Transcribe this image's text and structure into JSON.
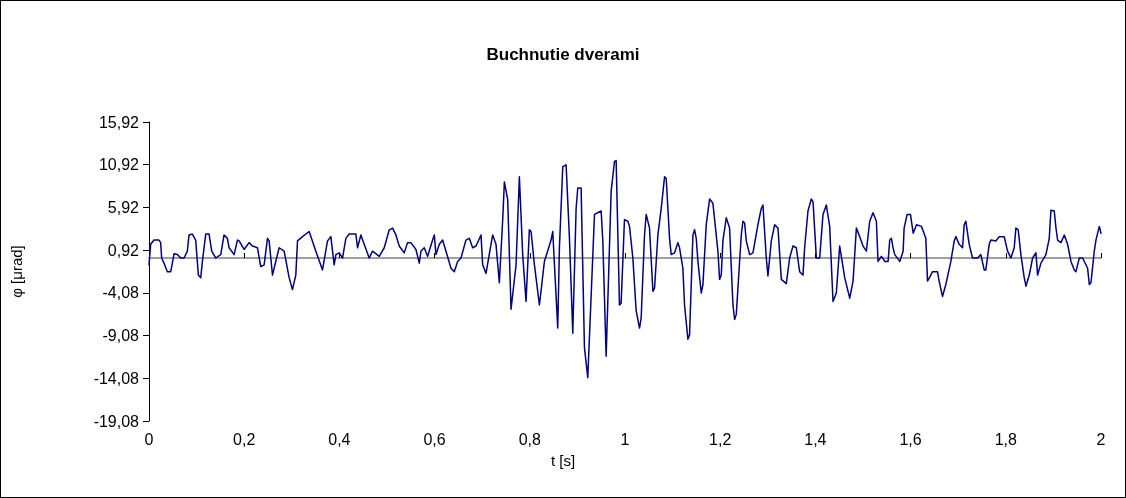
{
  "chart_data": {
    "type": "line",
    "title": "Buchnutie dverami",
    "xlabel": "t [s]",
    "ylabel": "φ [μrad]",
    "x": [
      0,
      0.0035,
      0.0105,
      0.021,
      0.0245,
      0.0266,
      0.0315,
      0.0386,
      0.0456,
      0.0491,
      0.0526,
      0.0596,
      0.0666,
      0.0736,
      0.0806,
      0.0841,
      0.0911,
      0.0981,
      0.1037,
      0.1087,
      0.1122,
      0.1192,
      0.1262,
      0.1318,
      0.1402,
      0.1507,
      0.1577,
      0.1647,
      0.1682,
      0.1788,
      0.1858,
      0.1893,
      0.1998,
      0.2103,
      0.2173,
      0.2278,
      0.2348,
      0.2419,
      0.2489,
      0.2524,
      0.2594,
      0.2629,
      0.2734,
      0.2839,
      0.2944,
      0.3014,
      0.3084,
      0.312,
      0.3225,
      0.3365,
      0.3505,
      0.3645,
      0.375,
      0.382,
      0.389,
      0.3926,
      0.3996,
      0.4066,
      0.4136,
      0.4206,
      0.4346,
      0.4381,
      0.4451,
      0.4521,
      0.4626,
      0.4696,
      0.4837,
      0.4942,
      0.5047,
      0.5117,
      0.5187,
      0.5257,
      0.5362,
      0.5432,
      0.5502,
      0.5608,
      0.5678,
      0.5713,
      0.5783,
      0.5853,
      0.5958,
      0.5994,
      0.6029,
      0.6099,
      0.6169,
      0.6239,
      0.6344,
      0.6414,
      0.6484,
      0.6554,
      0.6659,
      0.6729,
      0.6799,
      0.687,
      0.6975,
      0.701,
      0.708,
      0.7185,
      0.722,
      0.729,
      0.736,
      0.7431,
      0.7466,
      0.7536,
      0.7606,
      0.7711,
      0.7781,
      0.7851,
      0.7921,
      0.7991,
      0.8027,
      0.8097,
      0.8202,
      0.8307,
      0.8447,
      0.8482,
      0.8587,
      0.8622,
      0.8693,
      0.8763,
      0.8833,
      0.8903,
      0.8973,
      0.9008,
      0.9078,
      0.9148,
      0.9218,
      0.9359,
      0.9499,
      0.9534,
      0.9604,
      0.9709,
      0.9779,
      0.9814,
      0.9884,
      0.9919,
      0.9989,
      1.006,
      1.0095,
      1.0165,
      1.0235,
      1.0305,
      1.034,
      1.041,
      1.0445,
      1.0515,
      1.0586,
      1.0621,
      1.0691,
      1.0761,
      1.0831,
      1.0866,
      1.0936,
      1.0971,
      1.1041,
      1.1111,
      1.1146,
      1.1216,
      1.1251,
      1.1321,
      1.1356,
      1.1427,
      1.1462,
      1.1497,
      1.1532,
      1.1602,
      1.1637,
      1.1707,
      1.1777,
      1.1847,
      1.1952,
      1.1987,
      1.2022,
      1.2057,
      1.2127,
      1.2197,
      1.2268,
      1.2303,
      1.2338,
      1.2443,
      1.2478,
      1.2513,
      1.2548,
      1.2618,
      1.2688,
      1.2793,
      1.2863,
      1.2898,
      1.2968,
      1.3003,
      1.3074,
      1.3144,
      1.3214,
      1.3284,
      1.3389,
      1.3459,
      1.3529,
      1.3599,
      1.3669,
      1.3739,
      1.3774,
      1.3844,
      1.3915,
      1.395,
      1.402,
      1.409,
      1.416,
      1.423,
      1.43,
      1.437,
      1.444,
      1.451,
      1.4616,
      1.4721,
      1.4791,
      1.4861,
      1.4931,
      1.5001,
      1.5071,
      1.5141,
      1.5211,
      1.5281,
      1.5316,
      1.5387,
      1.5457,
      1.5527,
      1.5562,
      1.5597,
      1.5632,
      1.5667,
      1.5773,
      1.5843,
      1.5864,
      1.5927,
      1.5997,
      1.6054,
      1.6124,
      1.6229,
      1.632,
      1.6355,
      1.6425,
      1.646,
      1.6565,
      1.66,
      1.667,
      1.674,
      1.6846,
      1.6916,
      1.6951,
      1.7021,
      1.7091,
      1.7126,
      1.7161,
      1.7231,
      1.7301,
      1.7406,
      1.7476,
      1.7546,
      1.7581,
      1.7651,
      1.7686,
      1.7792,
      1.7862,
      1.7967,
      1.8037,
      1.8107,
      1.8177,
      1.8212,
      1.8261,
      1.8317,
      1.8387,
      1.8423,
      1.8493,
      1.8563,
      1.8633,
      1.8668,
      1.8738,
      1.8843,
      1.8913,
      1.8948,
      1.9018,
      1.9054,
      1.9089,
      1.9159,
      1.9229,
      1.9299,
      1.9369,
      1.9439,
      1.9474,
      1.9544,
      1.9614,
      1.9719,
      1.9754,
      1.9789,
      1.9859,
      1.9894,
      1.9964,
      2.0
    ],
    "series": [
      {
        "color": "#000080",
        "values": [
          -0.8,
          1.6,
          2.1,
          2.1,
          1.8,
          0,
          -0.6,
          -1.6,
          -1.6,
          -0.6,
          0.5,
          0.4,
          0,
          0,
          0.8,
          2.7,
          2.8,
          2.1,
          -2,
          -2.3,
          -0.4,
          2.8,
          2.8,
          0.8,
          0,
          0.4,
          2.7,
          2.3,
          1.2,
          0.4,
          2.1,
          2,
          1,
          1.8,
          1.4,
          1.2,
          -1,
          -0.8,
          2.3,
          2,
          -2,
          -1.2,
          1.2,
          0.8,
          -2.3,
          -3.7,
          -2,
          2,
          2.5,
          3.1,
          0.8,
          -1.4,
          2,
          2.5,
          -0.8,
          0.4,
          0.6,
          0,
          2.3,
          2.8,
          2.8,
          1.2,
          2.7,
          1.6,
          0,
          0.8,
          0.2,
          1.2,
          3.3,
          3.5,
          2.7,
          1.4,
          0.6,
          1.8,
          1.8,
          1,
          -0.6,
          0.8,
          1.2,
          0.2,
          2.1,
          2.7,
          0.4,
          1.6,
          2.1,
          0.8,
          -1.2,
          -1.6,
          -0.4,
          0,
          2.1,
          2.3,
          1.2,
          1.4,
          2.7,
          -0.8,
          -1.8,
          1.6,
          2.7,
          1.6,
          -2.9,
          4.5,
          8.9,
          6.8,
          -6,
          -0.8,
          9.5,
          0.4,
          -5.1,
          3.3,
          3.1,
          -0.8,
          -5.5,
          -0.4,
          2.1,
          3.1,
          -8.2,
          1.2,
          10.7,
          10.9,
          2.3,
          -8.8,
          5.8,
          8.2,
          8.2,
          -10.5,
          -14,
          5.1,
          5.5,
          2,
          -11.5,
          7.8,
          11.3,
          11.4,
          -5.5,
          -5.3,
          4.5,
          4.3,
          3.7,
          0,
          -6.2,
          -8.2,
          -7,
          2.7,
          5.1,
          3.5,
          -3.9,
          -3.5,
          2.7,
          5.8,
          9.5,
          9.3,
          2.3,
          0.4,
          0.6,
          1.8,
          1.2,
          -1.2,
          -5.5,
          -9.5,
          -9,
          2.7,
          3.3,
          2.3,
          -0.4,
          -4.1,
          -3.1,
          3.9,
          6.9,
          6.4,
          0.8,
          -2.5,
          -2,
          2,
          4.7,
          3.5,
          -5.5,
          -7.2,
          -6.6,
          2.7,
          4.3,
          4.1,
          2,
          0.4,
          0.6,
          3.9,
          5.8,
          6.2,
          0,
          -2.1,
          2,
          3.9,
          3.5,
          -2.5,
          -3,
          0,
          1.4,
          1.2,
          -1.6,
          -2,
          1.2,
          5.5,
          6.9,
          6.6,
          0,
          0,
          5.1,
          6.2,
          3.7,
          -5.1,
          -4.1,
          1.4,
          -2.3,
          -4.7,
          -2.7,
          3.5,
          2.5,
          1.4,
          0.8,
          4.3,
          5.3,
          4.3,
          -0.4,
          0.2,
          -0.4,
          -0.4,
          2.1,
          2.3,
          1.2,
          0.4,
          -0.4,
          0.8,
          3.5,
          5.1,
          5.1,
          2.9,
          3.9,
          3.7,
          2.3,
          -2.7,
          -2,
          -1.6,
          -1.6,
          -2.7,
          -4.5,
          -3.1,
          -0.4,
          2,
          2.5,
          1.6,
          1.2,
          3.9,
          4.3,
          1.6,
          0,
          0,
          0.4,
          -1.4,
          -1.4,
          1.6,
          2.1,
          2,
          2.5,
          2.5,
          0.8,
          0,
          1.2,
          3.5,
          3.3,
          0.4,
          -2.3,
          -3.3,
          -2,
          0,
          0.6,
          -2,
          -0.6,
          0.4,
          2.3,
          5.6,
          5.5,
          3.5,
          2.1,
          1.8,
          2.7,
          1.6,
          -0.4,
          -1.4,
          -1.6,
          0,
          0,
          -1.2,
          -3.1,
          -2.9,
          0.8,
          2.1,
          3.7,
          2.9
        ]
      }
    ],
    "xlim": [
      0,
      2
    ],
    "xticks": [
      0,
      {
        "value": 0.2,
        "label": "0,2"
      },
      {
        "value": 0.4,
        "label": "0,4"
      },
      {
        "value": 0.6,
        "label": "0,6"
      },
      {
        "value": 0.8,
        "label": "0,8"
      },
      1,
      {
        "value": 1.2,
        "label": "1,2"
      },
      {
        "value": 1.4,
        "label": "1,4"
      },
      {
        "value": 1.6,
        "label": "1,6"
      },
      {
        "value": 1.8,
        "label": "1,8"
      },
      2
    ],
    "ylim": [
      -19.08,
      15.92
    ],
    "yticks": [
      {
        "value": -19.08,
        "label": "-19,08"
      },
      {
        "value": -14.08,
        "label": "-14,08"
      },
      {
        "value": -9.08,
        "label": "-9,08"
      },
      {
        "value": -4.08,
        "label": "-4,08"
      },
      {
        "value": 0.92,
        "label": "0,92"
      },
      {
        "value": 5.92,
        "label": "5,92"
      },
      {
        "value": 10.92,
        "label": "10,92"
      },
      {
        "value": 15.92,
        "label": "15,92"
      }
    ],
    "grid": false,
    "marker": "none",
    "line_style": "solid"
  }
}
